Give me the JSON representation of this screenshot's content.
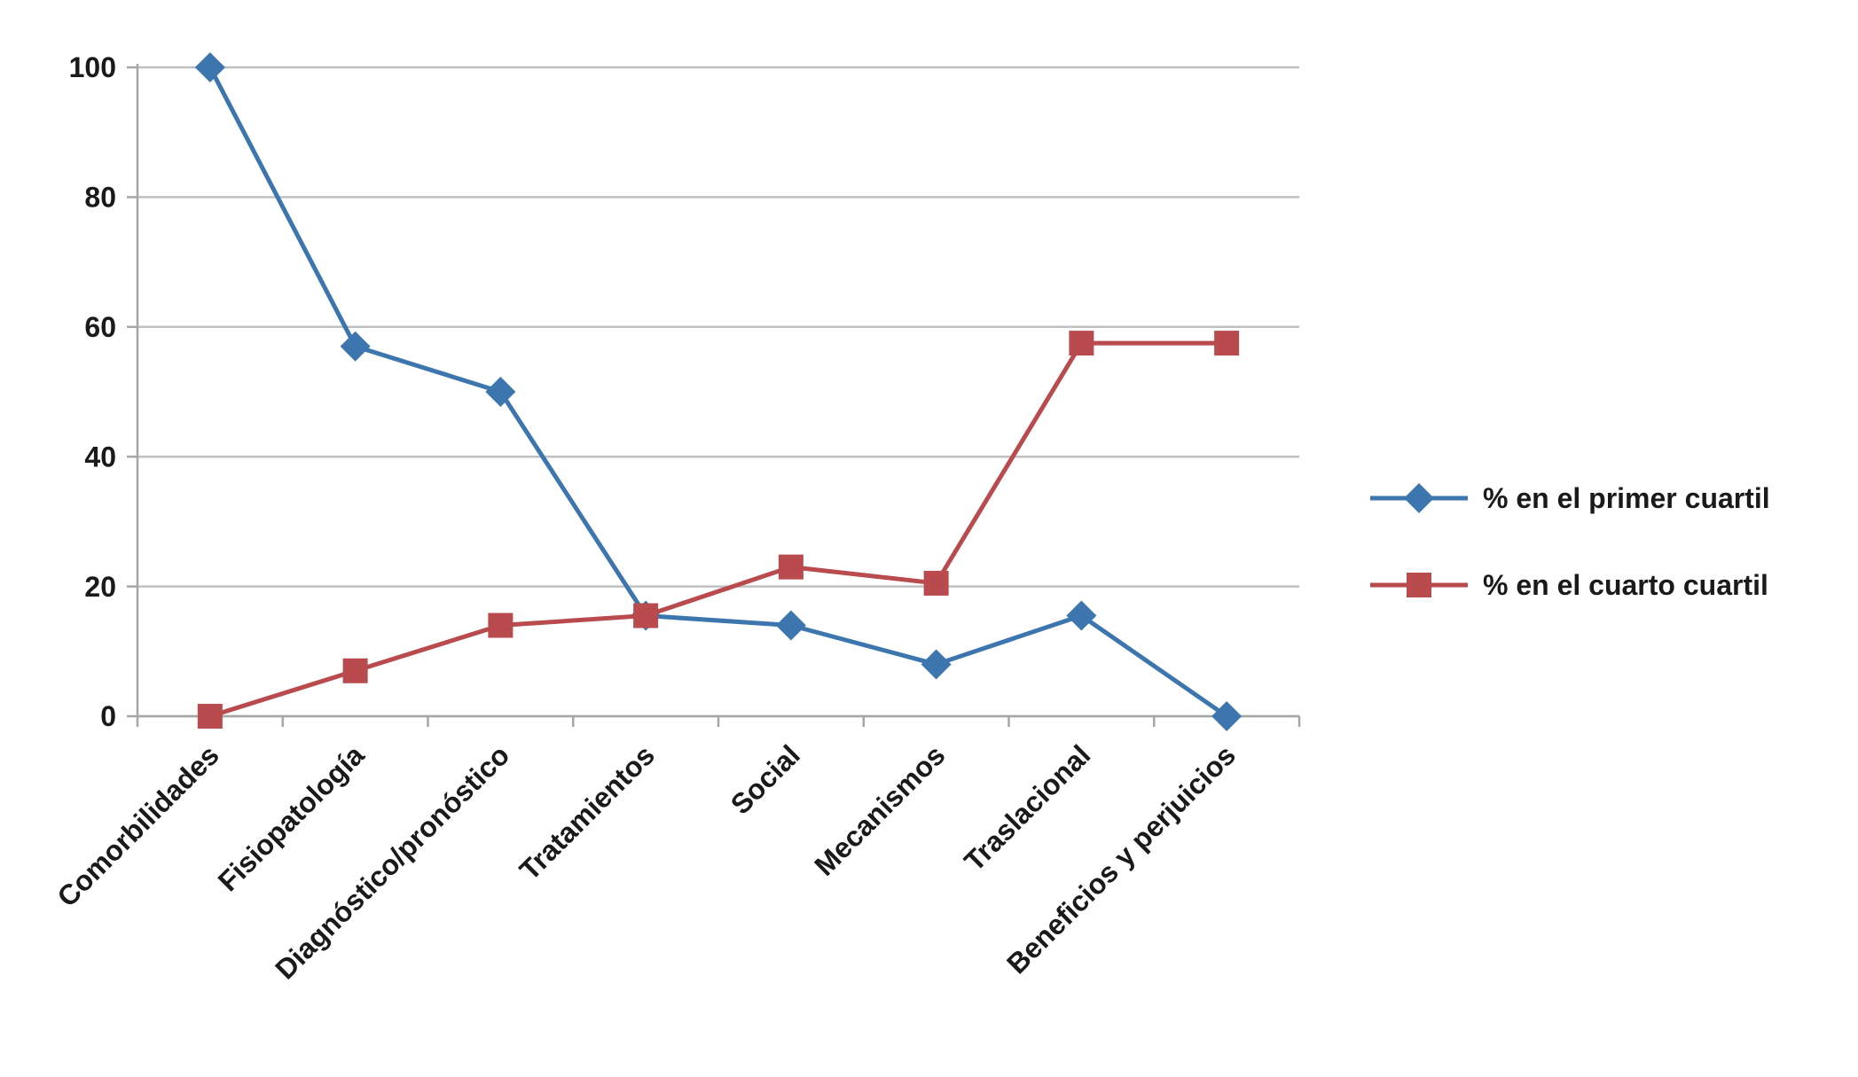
{
  "chart_data": {
    "type": "line",
    "title": "",
    "xlabel": "",
    "ylabel": "",
    "categories": [
      "Comorbilidades",
      "Fisiopatología",
      "Diagnóstico/pronóstico",
      "Tratamientos",
      "Social",
      "Mecanismos",
      "Traslacional",
      "Beneficios y perjuicios"
    ],
    "series": [
      {
        "name": "% en el primer cuartil",
        "marker": "diamond",
        "color": "#3D76AE",
        "values": [
          100,
          57,
          50,
          15.5,
          14,
          8,
          15.5,
          0
        ]
      },
      {
        "name": "% en el cuarto cuartil",
        "marker": "square",
        "color": "#B94A4D",
        "values": [
          0,
          7,
          14,
          15.5,
          23,
          20.5,
          57.5,
          57.5
        ]
      }
    ],
    "ylim": [
      0,
      100
    ],
    "yticks": [
      0,
      20,
      40,
      60,
      80,
      100
    ],
    "grid": true,
    "legend_position": "right",
    "gridline_color": "#C0C0C0",
    "axis_color": "#A6A6A6",
    "text_color": "#1a1a1a"
  }
}
